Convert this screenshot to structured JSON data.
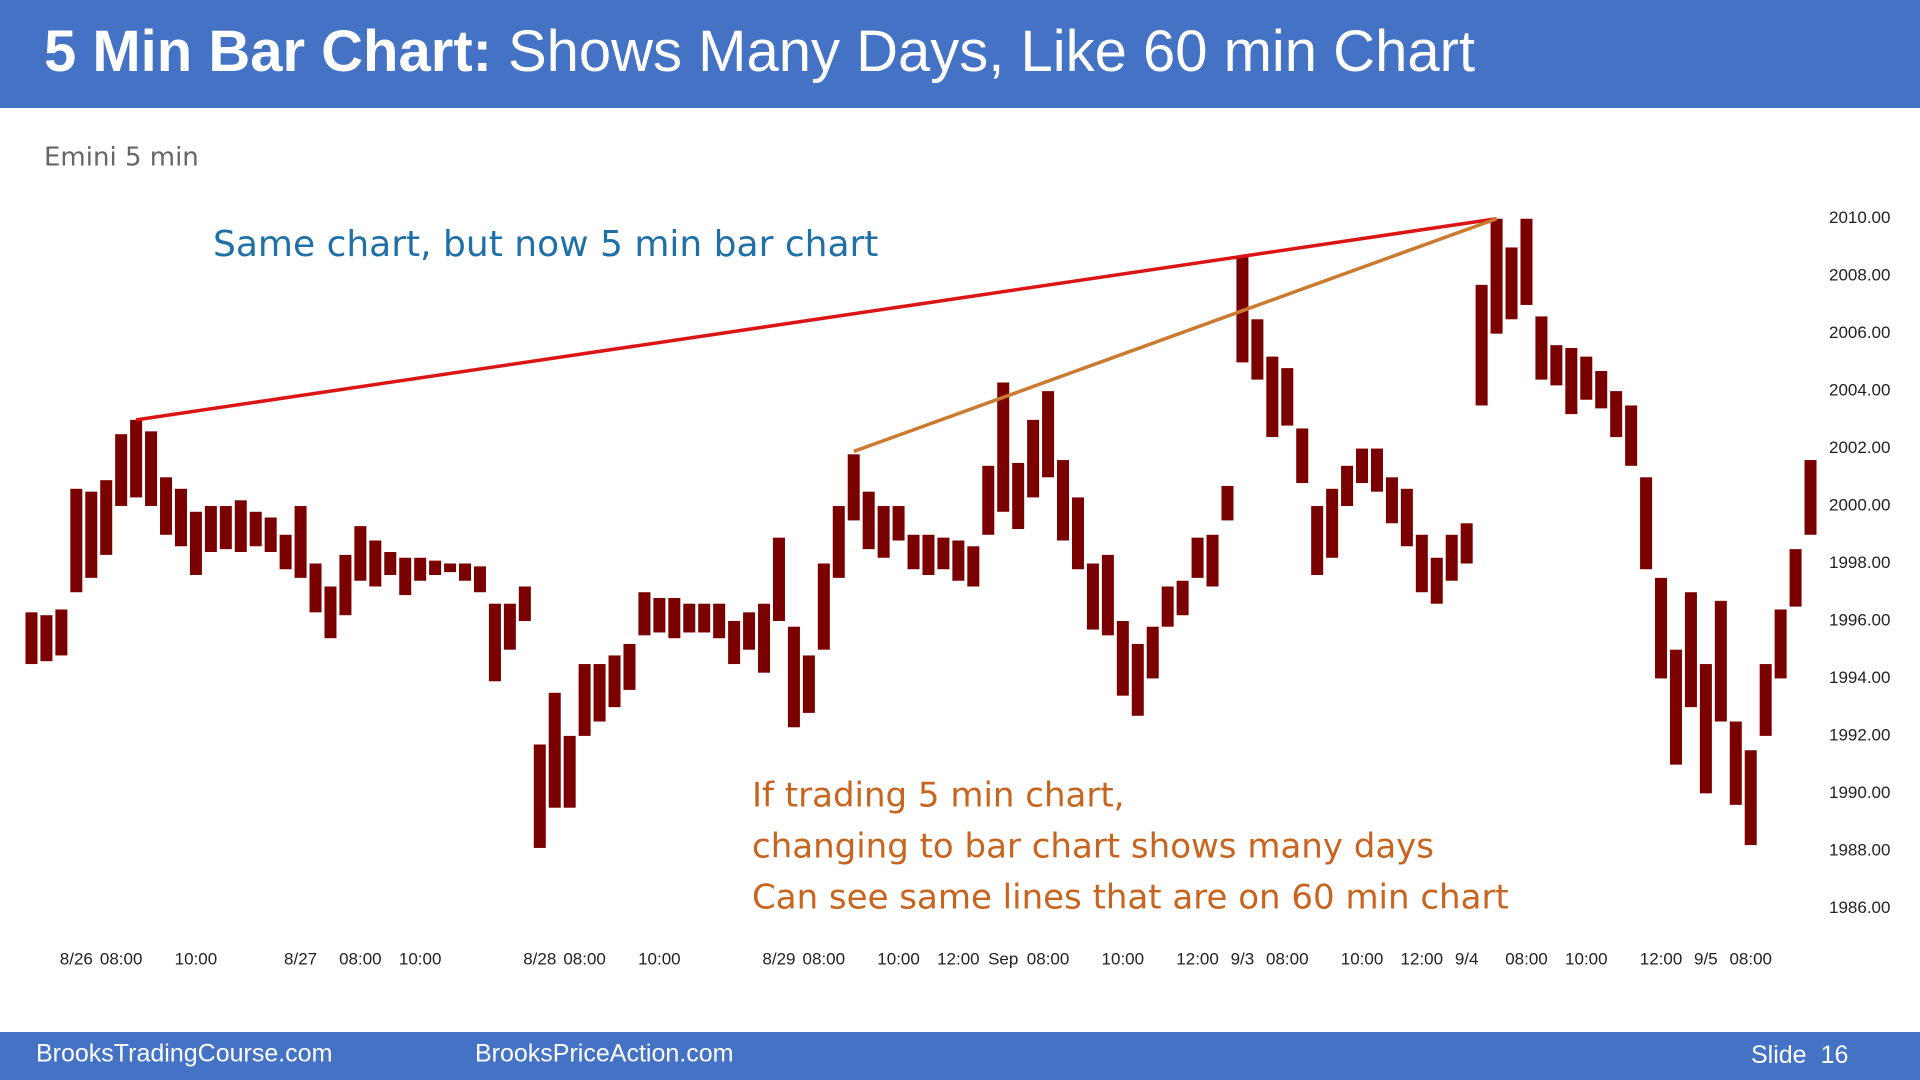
{
  "slide": {
    "title_bold": "5 Min Bar Chart:",
    "title_rest": "Shows Many Days, Like 60 min Chart",
    "footer_left": "BrooksTradingCourse.com",
    "footer_center": "BrooksPriceAction.com",
    "slide_label": "Slide",
    "slide_number": 16
  },
  "chart_data": {
    "type": "bar_range",
    "title": "Emini 5 min",
    "annotations": [
      "Same chart, but now 5 min bar chart"
    ],
    "notes": [
      "If trading 5 min chart,",
      "changing to bar chart shows many days",
      "Can see same lines that are on 60 min chart"
    ],
    "color": "#7b0000",
    "categories": [
      null,
      null,
      null,
      "8/26",
      null,
      null,
      "08:00",
      null,
      null,
      null,
      null,
      "10:00",
      null,
      null,
      null,
      null,
      null,
      null,
      "8/27",
      null,
      null,
      null,
      "08:00",
      null,
      null,
      null,
      "10:00",
      null,
      null,
      null,
      null,
      null,
      null,
      null,
      "8/28",
      null,
      null,
      "08:00",
      null,
      null,
      null,
      null,
      "10:00",
      null,
      null,
      null,
      null,
      null,
      null,
      null,
      "8/29",
      null,
      null,
      "08:00",
      null,
      null,
      null,
      null,
      "10:00",
      null,
      null,
      null,
      "12:00",
      null,
      null,
      "Sep",
      null,
      null,
      "08:00",
      null,
      null,
      null,
      null,
      "10:00",
      null,
      null,
      null,
      null,
      "12:00",
      null,
      null,
      "9/3",
      null,
      null,
      "08:00",
      null,
      null,
      null,
      null,
      "10:00",
      null,
      null,
      null,
      "12:00",
      null,
      null,
      "9/4",
      null,
      null,
      null,
      "08:00",
      null,
      null,
      null,
      "10:00",
      null,
      null,
      null,
      null,
      "12:00",
      null,
      null,
      "9/5",
      null,
      null,
      "08:00",
      null,
      null,
      null,
      null
    ],
    "high": [
      1996.3,
      1996.2,
      1996.4,
      2000.6,
      2000.5,
      2000.9,
      2002.5,
      2003.0,
      2002.6,
      2001.0,
      2000.6,
      1999.8,
      2000.0,
      2000.0,
      2000.2,
      1999.8,
      1999.6,
      1999.0,
      2000.0,
      1998.0,
      1997.2,
      1998.3,
      1999.3,
      1998.8,
      1998.4,
      1998.2,
      1998.2,
      1998.1,
      1998.0,
      1998.0,
      1997.9,
      1996.6,
      1996.6,
      1997.2,
      1991.7,
      1993.5,
      1992.0,
      1994.5,
      1994.5,
      1994.8,
      1995.2,
      1997.0,
      1996.8,
      1996.8,
      1996.6,
      1996.6,
      1996.6,
      1996.0,
      1996.3,
      1996.6,
      1998.9,
      1995.8,
      1994.8,
      1998.0,
      2000.0,
      2001.8,
      2000.5,
      2000.0,
      2000.0,
      1999.0,
      1999.0,
      1998.9,
      1998.8,
      1998.6,
      2001.4,
      2004.3,
      2001.5,
      2003.0,
      2004.0,
      2001.6,
      2000.3,
      1998.0,
      1998.3,
      1996.0,
      1995.2,
      1995.8,
      1997.2,
      1997.4,
      1998.9,
      1999.0,
      2000.7,
      2008.7,
      2006.5,
      2005.2,
      2004.8,
      2002.7,
      2000.0,
      2000.6,
      2001.4,
      2002.0,
      2002.0,
      2001.0,
      2000.6,
      1999.0,
      1998.2,
      1999.0,
      1999.4,
      2007.7,
      2010.0,
      2009.0,
      2010.0,
      2006.6,
      2005.6,
      2005.5,
      2005.2,
      2004.7,
      2004.0,
      2003.5,
      2001.0,
      1997.5,
      1995.0,
      1997.0,
      1994.5,
      1996.7,
      1992.5,
      1991.5,
      1994.5,
      1996.4,
      1998.5,
      2001.6
    ],
    "low": [
      1994.5,
      1994.6,
      1994.8,
      1997.0,
      1997.5,
      1998.3,
      2000.0,
      2000.3,
      2000.0,
      1999.0,
      1998.6,
      1997.6,
      1998.4,
      1998.5,
      1998.4,
      1998.6,
      1998.4,
      1997.8,
      1997.5,
      1996.3,
      1995.4,
      1996.2,
      1997.4,
      1997.2,
      1997.6,
      1996.9,
      1997.4,
      1997.6,
      1997.7,
      1997.4,
      1997.0,
      1993.9,
      1995.0,
      1996.0,
      1988.1,
      1989.5,
      1989.5,
      1992.0,
      1992.5,
      1993.0,
      1993.6,
      1995.5,
      1995.6,
      1995.4,
      1995.6,
      1995.6,
      1995.4,
      1994.5,
      1995.0,
      1994.2,
      1996.0,
      1992.3,
      1992.8,
      1995.0,
      1997.5,
      1999.5,
      1998.5,
      1998.2,
      1998.8,
      1997.8,
      1997.6,
      1997.8,
      1997.4,
      1997.2,
      1999.0,
      1999.8,
      1999.2,
      2000.3,
      2001.0,
      1998.8,
      1997.8,
      1995.7,
      1995.5,
      1993.4,
      1992.7,
      1994.0,
      1995.8,
      1996.2,
      1997.5,
      1997.2,
      1999.5,
      2005.0,
      2004.4,
      2002.4,
      2002.8,
      2000.8,
      1997.6,
      1998.2,
      2000.0,
      2000.8,
      2000.5,
      1999.4,
      1998.6,
      1997.0,
      1996.6,
      1997.4,
      1998.0,
      2003.5,
      2006.0,
      2006.5,
      2007.0,
      2004.4,
      2004.2,
      2003.2,
      2003.7,
      2003.4,
      2002.4,
      2001.4,
      1997.8,
      1994.0,
      1991.0,
      1993.0,
      1990.0,
      1992.5,
      1989.6,
      1988.2,
      1992.0,
      1994.0,
      1996.5,
      1999.0
    ],
    "trend_lines": [
      {
        "color": "#dd1414",
        "from": [
          7,
          2003.0
        ],
        "to": [
          98,
          2010.0
        ]
      },
      {
        "color": "#cc7a30",
        "from": [
          55,
          2001.9
        ],
        "to": [
          98,
          2010.0
        ]
      }
    ],
    "ylim": [
      1985,
      2011
    ],
    "yticks": [
      {
        "value": 1986,
        "label": "1986.00"
      },
      {
        "value": 1988,
        "label": "1988.00"
      },
      {
        "value": 1990,
        "label": "1990.00"
      },
      {
        "value": 1992,
        "label": "1992.00"
      },
      {
        "value": 1994,
        "label": "1994.00"
      },
      {
        "value": 1996,
        "label": "1996.00"
      },
      {
        "value": 1998,
        "label": "1998.00"
      },
      {
        "value": 2000,
        "label": "2000.00"
      },
      {
        "value": 2002,
        "label": "2002.00"
      },
      {
        "value": 2004,
        "label": "2004.00"
      },
      {
        "value": 2006,
        "label": "2006.00"
      },
      {
        "value": 2008,
        "label": "2008.00"
      },
      {
        "value": 2010,
        "label": "2010.00"
      }
    ]
  }
}
